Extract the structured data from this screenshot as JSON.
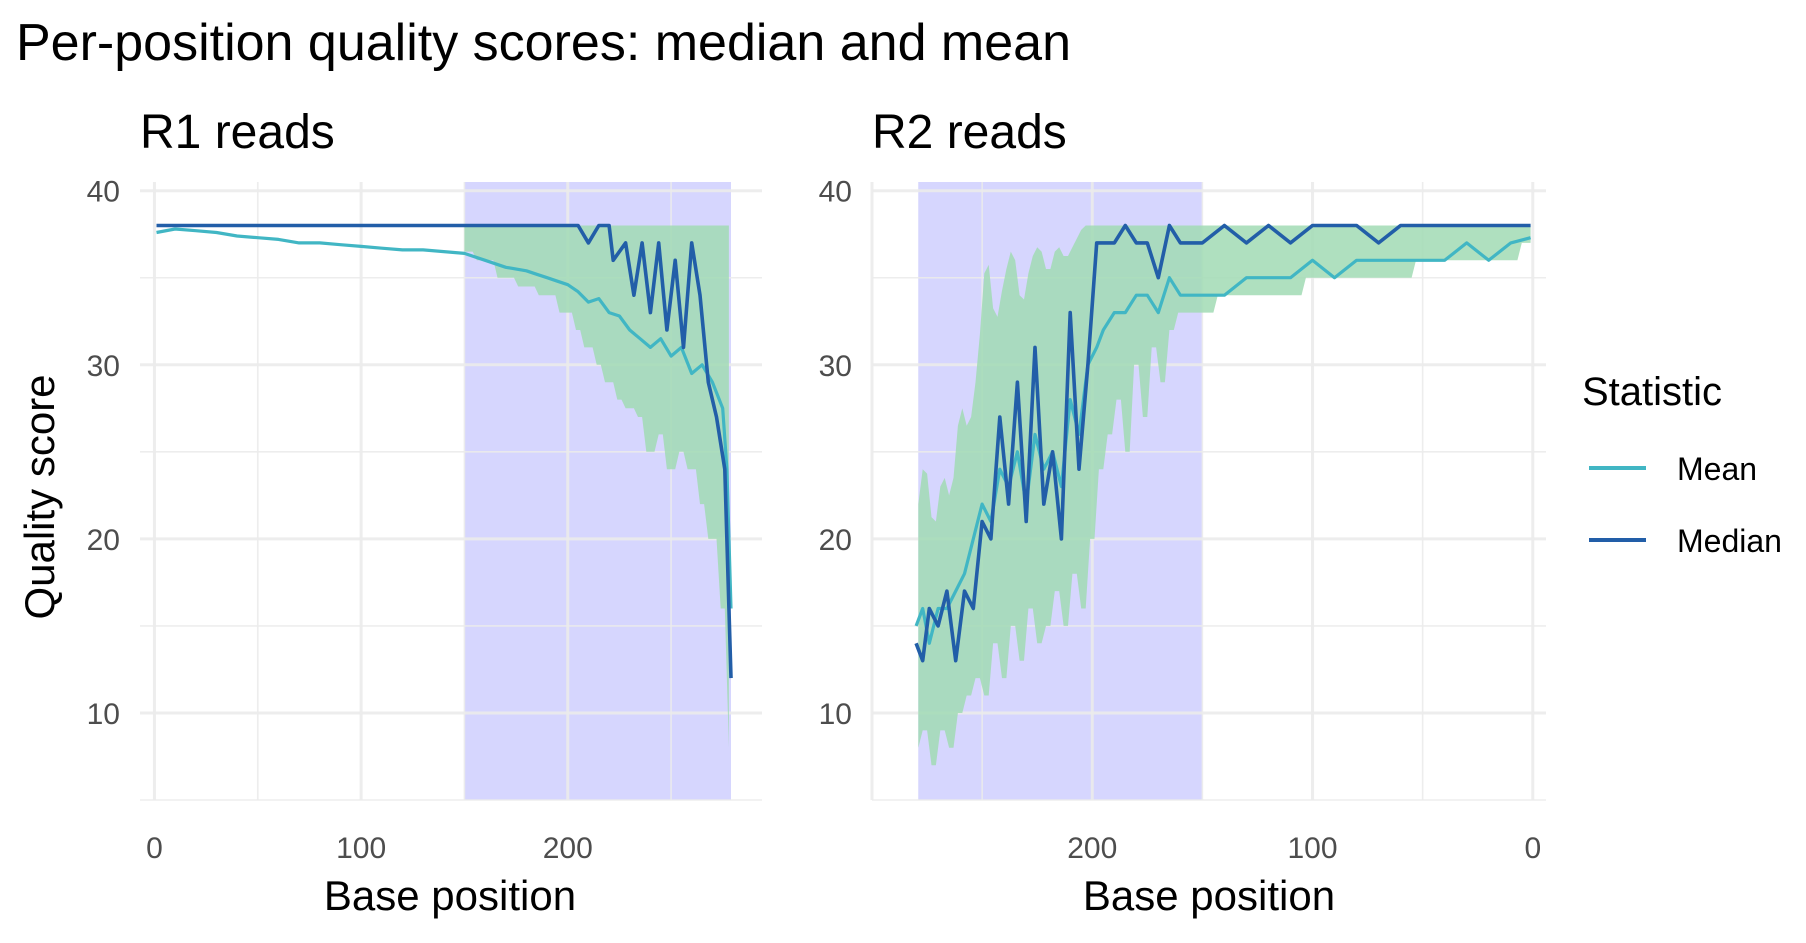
{
  "chart_data": {
    "title": "Per-position quality scores: median and mean",
    "type": "line",
    "legend": {
      "title": "Statistic",
      "position": "right",
      "entries": [
        {
          "name": "Mean",
          "color": "#41b6c4"
        },
        {
          "name": "Median",
          "color": "#225ea8"
        }
      ]
    },
    "colors": {
      "mean": "#41b6c4",
      "median": "#225ea8",
      "band": "#a1dab4",
      "highlight": "#d6d6fe"
    },
    "grid": true,
    "panels": [
      {
        "facet_label": "R1 reads",
        "xlabel": "Base position",
        "ylabel": "Quality score",
        "xlim": [
          -7,
          294
        ],
        "x_reversed": false,
        "ylim": [
          5,
          40.5
        ],
        "xticks": [
          0,
          100,
          200
        ],
        "yticks": [
          10,
          20,
          30,
          40
        ],
        "highlight_range": [
          150,
          279
        ],
        "series": [
          {
            "name": "Median",
            "x": [
              1,
              150,
              205,
              210,
              215,
              220,
              222,
              228,
              232,
              236,
              240,
              244,
              248,
              252,
              256,
              260,
              264,
              268,
              272,
              276,
              279
            ],
            "values": [
              38,
              38,
              38,
              37,
              38,
              38,
              36,
              37,
              34,
              37,
              33,
              37,
              32,
              36,
              31,
              37,
              34,
              29,
              27,
              24,
              12
            ]
          },
          {
            "name": "Mean",
            "x": [
              1,
              10,
              20,
              30,
              40,
              50,
              60,
              70,
              80,
              90,
              100,
              110,
              120,
              130,
              140,
              150,
              160,
              170,
              180,
              185,
              190,
              195,
              200,
              205,
              210,
              215,
              220,
              225,
              230,
              235,
              240,
              245,
              250,
              255,
              260,
              265,
              270,
              275,
              277,
              279
            ],
            "values": [
              37.6,
              37.8,
              37.7,
              37.6,
              37.4,
              37.3,
              37.2,
              37.0,
              37.0,
              36.9,
              36.8,
              36.7,
              36.6,
              36.6,
              36.5,
              36.4,
              36.0,
              35.6,
              35.4,
              35.2,
              35.0,
              34.8,
              34.6,
              34.2,
              33.6,
              33.8,
              33.0,
              32.8,
              32.0,
              31.5,
              31.0,
              31.5,
              30.5,
              31.0,
              29.5,
              30.0,
              29.0,
              27.5,
              24.0,
              16.0
            ]
          },
          {
            "name": "Q25",
            "x": [
              150,
              160,
              170,
              180,
              190,
              200,
              205,
              210,
              215,
              220,
              225,
              230,
              235,
              240,
              245,
              250,
              255,
              260,
              265,
              270,
              275,
              279
            ],
            "values": [
              36.5,
              36,
              35,
              34.5,
              34,
              33,
              32,
              31,
              30,
              29,
              28,
              27.5,
              27,
              25,
              26,
              24,
              25,
              24,
              22,
              20,
              16,
              8
            ]
          },
          {
            "name": "Q75",
            "x": [
              150,
              279
            ],
            "values": [
              38,
              38
            ]
          }
        ]
      },
      {
        "facet_label": "R2 reads",
        "xlabel": "Base position",
        "ylabel": "",
        "xlim": [
          -6,
          300
        ],
        "x_reversed": true,
        "ylim": [
          5,
          40.5
        ],
        "xticks": [
          200,
          100,
          0
        ],
        "yticks": [
          10,
          20,
          30,
          40
        ],
        "highlight_range": [
          150,
          279
        ],
        "series": [
          {
            "name": "Median",
            "x": [
              280,
              277,
              274,
              270,
              266,
              262,
              258,
              254,
              250,
              246,
              242,
              238,
              234,
              230,
              226,
              222,
              218,
              214,
              210,
              206,
              202,
              198,
              195,
              190,
              185,
              180,
              175,
              170,
              165,
              160,
              155,
              150,
              140,
              130,
              120,
              110,
              100,
              90,
              80,
              70,
              60,
              50,
              40,
              30,
              20,
              10,
              1
            ],
            "values": [
              14,
              13,
              16,
              15,
              17,
              13,
              17,
              16,
              21,
              20,
              27,
              22,
              29,
              21,
              31,
              22,
              25,
              20,
              33,
              24,
              30,
              37,
              37,
              37,
              38,
              37,
              37,
              35,
              38,
              37,
              37,
              37,
              38,
              37,
              38,
              37,
              38,
              38,
              38,
              37,
              38,
              38,
              38,
              38,
              38,
              38,
              38
            ]
          },
          {
            "name": "Mean",
            "x": [
              280,
              277,
              274,
              270,
              266,
              262,
              258,
              254,
              250,
              246,
              242,
              238,
              234,
              230,
              226,
              222,
              218,
              214,
              210,
              206,
              202,
              198,
              195,
              190,
              185,
              180,
              175,
              170,
              165,
              160,
              155,
              150,
              140,
              130,
              120,
              110,
              100,
              90,
              80,
              70,
              60,
              50,
              40,
              30,
              20,
              10,
              1
            ],
            "values": [
              15,
              16,
              14,
              16,
              16,
              17,
              18,
              20,
              22,
              21,
              24,
              23,
              25,
              22,
              26,
              24,
              25,
              23,
              28,
              26,
              30,
              31,
              32,
              33,
              33,
              34,
              34,
              33,
              35,
              34,
              34,
              34,
              34,
              35,
              35,
              35,
              36,
              35,
              36,
              36,
              36,
              36,
              36,
              37,
              36,
              37,
              37.3
            ]
          },
          {
            "name": "Q25",
            "x": [
              280,
              276,
              272,
              268,
              264,
              260,
              256,
              252,
              248,
              244,
              240,
              236,
              232,
              228,
              224,
              220,
              216,
              212,
              208,
              204,
              200,
              196,
              192,
              188,
              184,
              180,
              176,
              172,
              168,
              164,
              160,
              155,
              150,
              140,
              130,
              120,
              110,
              100,
              90,
              80,
              70,
              60,
              50,
              40,
              30,
              20,
              10,
              1
            ],
            "values": [
              8,
              9,
              7,
              9,
              8,
              10,
              11,
              12,
              11,
              14,
              12,
              15,
              13,
              16,
              14,
              15,
              17,
              15,
              18,
              16,
              20,
              24,
              26,
              28,
              25,
              30,
              27,
              31,
              29,
              32,
              33,
              33,
              33,
              34,
              34,
              34,
              34,
              35,
              35,
              35,
              35,
              35,
              36,
              36,
              36,
              36,
              36,
              37
            ]
          },
          {
            "name": "Q75",
            "x": [
              280,
              276,
              272,
              268,
              264,
              260,
              256,
              252,
              248,
              244,
              240,
              236,
              232,
              228,
              224,
              220,
              216,
              212,
              208,
              204,
              200,
              196,
              192,
              188,
              184,
              180,
              176,
              172,
              168,
              164,
              160,
              155,
              150,
              1
            ],
            "values": [
              21,
              25,
              20,
              24,
              22,
              28,
              26,
              30,
              37,
              32,
              35,
              37,
              33,
              36,
              37,
              35,
              37,
              36,
              37,
              38,
              38,
              38,
              38,
              38,
              38,
              38,
              38,
              38,
              38,
              38,
              38,
              38,
              38,
              38
            ]
          }
        ]
      }
    ]
  }
}
